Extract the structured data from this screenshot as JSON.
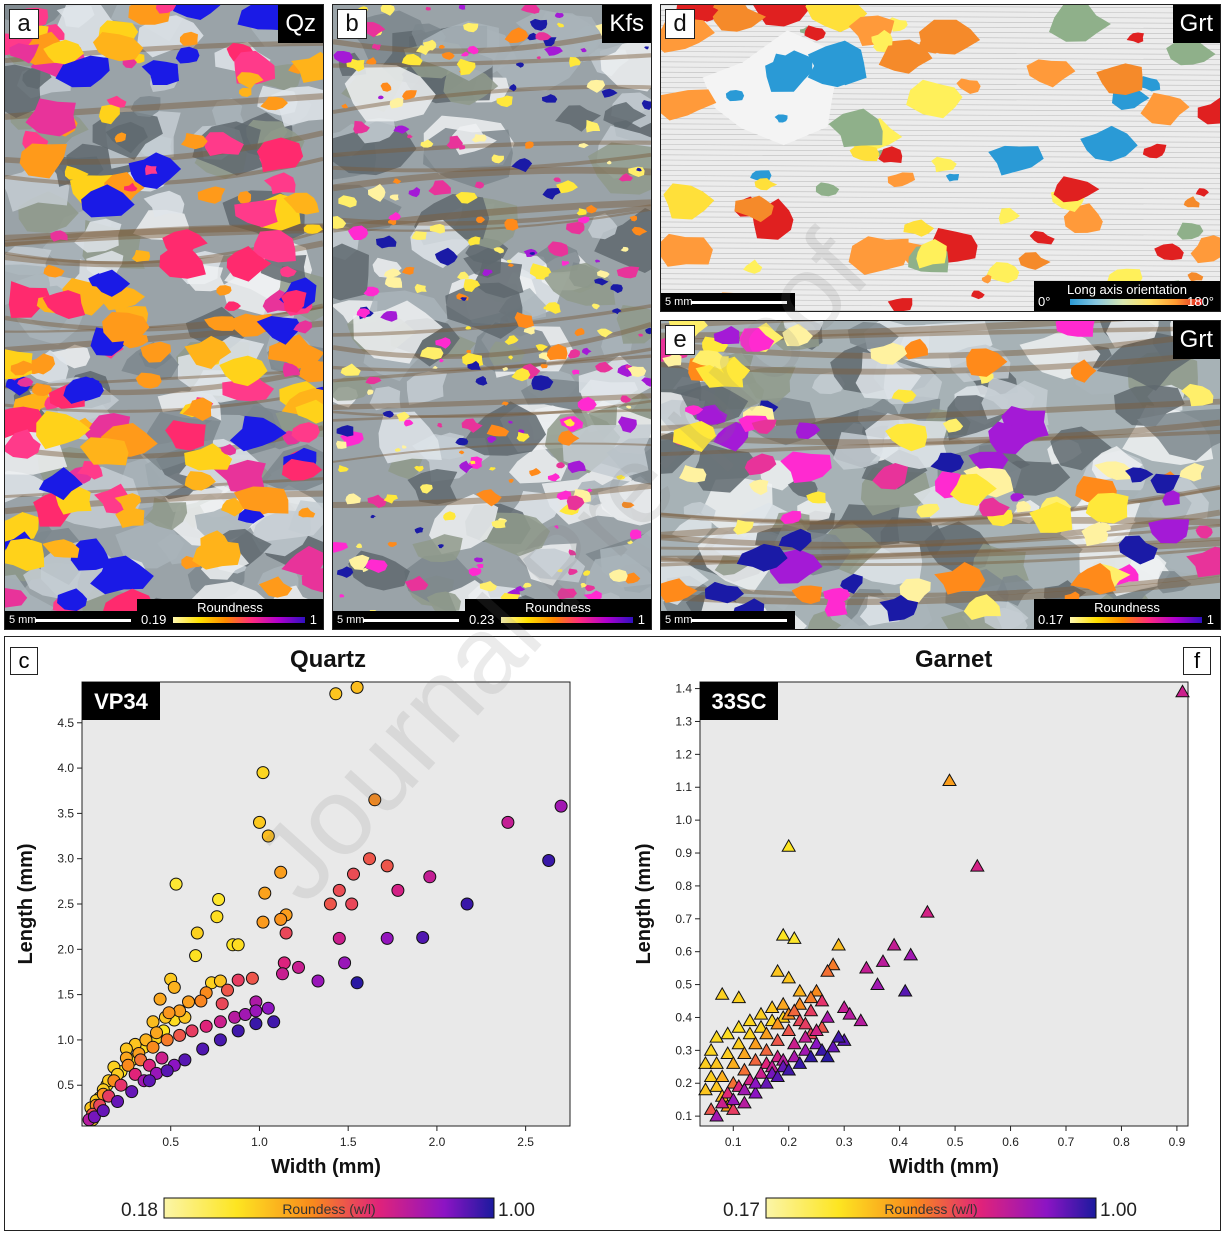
{
  "panels": {
    "a": {
      "letter": "a",
      "mineral": "Qz",
      "scale": "5 mm",
      "cbar_title": "Roundness",
      "cbar_min": "0.19",
      "cbar_max": "1"
    },
    "b": {
      "letter": "b",
      "mineral": "Kfs",
      "scale": "5 mm",
      "cbar_title": "Roundness",
      "cbar_min": "0.23",
      "cbar_max": "1"
    },
    "d": {
      "letter": "d",
      "mineral": "Grt",
      "scale": "5 mm",
      "cbar_title": "Long axis orientation",
      "cbar_min": "0°",
      "cbar_max": "180°"
    },
    "e": {
      "letter": "e",
      "mineral": "Grt",
      "scale": "5 mm",
      "cbar_title": "Roundness",
      "cbar_min": "0.17",
      "cbar_max": "1"
    }
  },
  "plots": {
    "c": {
      "letter": "c",
      "title": "Quartz",
      "sample": "VP34",
      "cbar_title": "Roundess (w/l)",
      "cbar_min": "0.18",
      "cbar_max": "1.00"
    },
    "f": {
      "letter": "f",
      "title": "Garnet",
      "sample": "33SC",
      "cbar_title": "Roundess (w/l)",
      "cbar_min": "0.17",
      "cbar_max": "1.00"
    }
  },
  "watermark": "Journal Pre-proof",
  "chart_data": [
    {
      "type": "scatter",
      "title": "Quartz",
      "xlabel": "Width (mm)",
      "ylabel": "Length (mm)",
      "xlim": [
        0.0,
        2.75
      ],
      "ylim": [
        0.05,
        4.95
      ],
      "xticks": [
        "0.5",
        "1.0",
        "1.5",
        "2.0",
        "2.5"
      ],
      "yticks": [
        "0.5",
        "1.0",
        "1.5",
        "2.0",
        "2.5",
        "3.0",
        "3.5",
        "4.0",
        "4.5"
      ],
      "marker": "circle",
      "color_variable": "roundness",
      "points": [
        [
          1.43,
          4.82,
          0.3
        ],
        [
          1.55,
          4.89,
          0.32
        ],
        [
          1.02,
          3.95,
          0.26
        ],
        [
          1.65,
          3.65,
          0.45
        ],
        [
          1.0,
          3.4,
          0.29
        ],
        [
          1.05,
          3.25,
          0.32
        ],
        [
          0.53,
          2.72,
          0.19
        ],
        [
          1.12,
          2.85,
          0.4
        ],
        [
          1.03,
          2.62,
          0.39
        ],
        [
          0.77,
          2.55,
          0.2
        ],
        [
          0.76,
          2.36,
          0.24
        ],
        [
          1.12,
          2.33,
          0.43
        ],
        [
          1.02,
          2.3,
          0.41
        ],
        [
          1.15,
          2.38,
          0.4
        ],
        [
          0.65,
          2.18,
          0.27
        ],
        [
          0.85,
          2.05,
          0.22
        ],
        [
          0.88,
          2.05,
          0.24
        ],
        [
          0.64,
          1.93,
          0.23
        ],
        [
          0.5,
          1.67,
          0.29
        ],
        [
          0.73,
          1.63,
          0.27
        ],
        [
          0.78,
          1.65,
          0.31
        ],
        [
          0.52,
          1.58,
          0.35
        ],
        [
          0.44,
          1.45,
          0.38
        ],
        [
          2.4,
          3.4,
          0.72
        ],
        [
          2.7,
          3.58,
          0.8
        ],
        [
          2.63,
          2.98,
          0.96
        ],
        [
          1.62,
          3.0,
          0.55
        ],
        [
          1.72,
          2.92,
          0.55
        ],
        [
          1.53,
          2.83,
          0.57
        ],
        [
          1.45,
          2.65,
          0.57
        ],
        [
          1.4,
          2.5,
          0.55
        ],
        [
          1.52,
          2.5,
          0.58
        ],
        [
          1.78,
          2.65,
          0.68
        ],
        [
          1.96,
          2.8,
          0.72
        ],
        [
          2.17,
          2.5,
          0.96
        ],
        [
          1.15,
          2.18,
          0.58
        ],
        [
          1.45,
          2.12,
          0.7
        ],
        [
          1.72,
          2.12,
          0.83
        ],
        [
          1.92,
          2.13,
          0.93
        ],
        [
          1.14,
          1.85,
          0.66
        ],
        [
          1.22,
          1.8,
          0.71
        ],
        [
          1.48,
          1.85,
          0.82
        ],
        [
          1.13,
          1.73,
          0.71
        ],
        [
          1.33,
          1.65,
          0.82
        ],
        [
          1.55,
          1.63,
          0.98
        ],
        [
          0.96,
          1.68,
          0.55
        ],
        [
          0.88,
          1.66,
          0.6
        ],
        [
          0.82,
          1.55,
          0.55
        ],
        [
          0.79,
          1.4,
          0.58
        ],
        [
          0.7,
          1.52,
          0.45
        ],
        [
          0.67,
          1.43,
          0.46
        ],
        [
          0.6,
          1.42,
          0.4
        ],
        [
          0.55,
          1.32,
          0.4
        ],
        [
          0.49,
          1.3,
          0.42
        ],
        [
          0.47,
          1.25,
          0.3
        ],
        [
          0.4,
          1.2,
          0.32
        ],
        [
          0.42,
          1.08,
          0.38
        ],
        [
          0.36,
          1.0,
          0.35
        ],
        [
          0.3,
          0.95,
          0.3
        ],
        [
          0.25,
          0.9,
          0.3
        ],
        [
          0.18,
          0.7,
          0.27
        ],
        [
          0.2,
          0.62,
          0.28
        ],
        [
          0.15,
          0.55,
          0.28
        ],
        [
          0.12,
          0.45,
          0.28
        ],
        [
          0.08,
          0.33,
          0.28
        ],
        [
          0.05,
          0.25,
          0.3
        ],
        [
          0.25,
          0.8,
          0.38
        ],
        [
          0.32,
          0.85,
          0.4
        ],
        [
          0.4,
          0.92,
          0.45
        ],
        [
          0.48,
          1.0,
          0.48
        ],
        [
          0.55,
          1.05,
          0.55
        ],
        [
          0.62,
          1.1,
          0.6
        ],
        [
          0.7,
          1.15,
          0.65
        ],
        [
          0.78,
          1.2,
          0.7
        ],
        [
          0.86,
          1.25,
          0.75
        ],
        [
          0.92,
          1.28,
          0.8
        ],
        [
          0.98,
          1.32,
          0.82
        ],
        [
          1.05,
          1.35,
          0.84
        ],
        [
          0.98,
          1.42,
          0.77
        ],
        [
          1.08,
          1.2,
          0.95
        ],
        [
          0.98,
          1.18,
          0.96
        ],
        [
          0.88,
          1.1,
          0.95
        ],
        [
          0.78,
          1.0,
          0.94
        ],
        [
          0.68,
          0.9,
          0.93
        ],
        [
          0.58,
          0.78,
          0.92
        ],
        [
          0.48,
          0.66,
          0.92
        ],
        [
          0.38,
          0.55,
          0.91
        ],
        [
          0.28,
          0.43,
          0.9
        ],
        [
          0.2,
          0.32,
          0.9
        ],
        [
          0.12,
          0.22,
          0.9
        ],
        [
          0.07,
          0.15,
          0.88
        ],
        [
          0.3,
          0.62,
          0.65
        ],
        [
          0.38,
          0.72,
          0.66
        ],
        [
          0.45,
          0.8,
          0.7
        ],
        [
          0.22,
          0.5,
          0.62
        ],
        [
          0.15,
          0.38,
          0.6
        ],
        [
          0.1,
          0.28,
          0.58
        ],
        [
          0.35,
          0.55,
          0.8
        ],
        [
          0.42,
          0.63,
          0.82
        ],
        [
          0.52,
          0.72,
          0.85
        ],
        [
          0.26,
          0.72,
          0.45
        ],
        [
          0.33,
          0.78,
          0.5
        ],
        [
          0.18,
          0.55,
          0.45
        ],
        [
          0.12,
          0.4,
          0.42
        ],
        [
          0.08,
          0.28,
          0.45
        ],
        [
          0.06,
          0.18,
          0.55
        ],
        [
          0.04,
          0.12,
          0.75
        ],
        [
          0.06,
          0.12,
          0.3
        ],
        [
          0.1,
          0.36,
          0.24
        ],
        [
          0.14,
          0.5,
          0.23
        ],
        [
          0.22,
          0.65,
          0.22
        ],
        [
          0.28,
          0.78,
          0.24
        ],
        [
          0.35,
          0.92,
          0.25
        ],
        [
          0.42,
          1.02,
          0.26
        ],
        [
          0.46,
          1.1,
          0.22
        ],
        [
          0.52,
          1.22,
          0.24
        ],
        [
          0.58,
          1.25,
          0.3
        ]
      ]
    },
    {
      "type": "scatter",
      "title": "Garnet",
      "xlabel": "Width (mm)",
      "ylabel": "Length (mm)",
      "xlim": [
        0.04,
        0.92
      ],
      "ylim": [
        0.07,
        1.42
      ],
      "xticks": [
        "0.1",
        "0.2",
        "0.3",
        "0.4",
        "0.5",
        "0.6",
        "0.7",
        "0.8",
        "0.9"
      ],
      "yticks": [
        "0.1",
        "0.2",
        "0.3",
        "0.4",
        "0.5",
        "0.6",
        "0.7",
        "0.8",
        "0.9",
        "1.0",
        "1.1",
        "1.2",
        "1.3",
        "1.4"
      ],
      "marker": "triangle",
      "color_variable": "roundness",
      "points": [
        [
          0.91,
          1.39,
          0.7
        ],
        [
          0.49,
          1.12,
          0.4
        ],
        [
          0.54,
          0.86,
          0.68
        ],
        [
          0.2,
          0.92,
          0.22
        ],
        [
          0.45,
          0.72,
          0.68
        ],
        [
          0.19,
          0.65,
          0.22
        ],
        [
          0.21,
          0.64,
          0.2
        ],
        [
          0.29,
          0.62,
          0.32
        ],
        [
          0.39,
          0.62,
          0.72
        ],
        [
          0.42,
          0.59,
          0.8
        ],
        [
          0.28,
          0.56,
          0.48
        ],
        [
          0.27,
          0.54,
          0.5
        ],
        [
          0.34,
          0.55,
          0.72
        ],
        [
          0.37,
          0.57,
          0.74
        ],
        [
          0.41,
          0.48,
          0.92
        ],
        [
          0.36,
          0.5,
          0.8
        ],
        [
          0.08,
          0.47,
          0.27
        ],
        [
          0.11,
          0.46,
          0.27
        ],
        [
          0.18,
          0.54,
          0.3
        ],
        [
          0.2,
          0.52,
          0.3
        ],
        [
          0.22,
          0.48,
          0.35
        ],
        [
          0.25,
          0.48,
          0.45
        ],
        [
          0.3,
          0.43,
          0.72
        ],
        [
          0.31,
          0.41,
          0.75
        ],
        [
          0.33,
          0.39,
          0.75
        ],
        [
          0.27,
          0.4,
          0.78
        ],
        [
          0.29,
          0.34,
          0.95
        ],
        [
          0.3,
          0.33,
          0.92
        ],
        [
          0.25,
          0.36,
          0.68
        ],
        [
          0.23,
          0.38,
          0.6
        ],
        [
          0.21,
          0.42,
          0.52
        ],
        [
          0.19,
          0.44,
          0.38
        ],
        [
          0.17,
          0.43,
          0.3
        ],
        [
          0.15,
          0.41,
          0.28
        ],
        [
          0.13,
          0.39,
          0.26
        ],
        [
          0.11,
          0.37,
          0.24
        ],
        [
          0.09,
          0.35,
          0.24
        ],
        [
          0.07,
          0.34,
          0.25
        ],
        [
          0.06,
          0.3,
          0.26
        ],
        [
          0.05,
          0.26,
          0.28
        ],
        [
          0.06,
          0.22,
          0.28
        ],
        [
          0.07,
          0.19,
          0.3
        ],
        [
          0.08,
          0.16,
          0.32
        ],
        [
          0.09,
          0.13,
          0.4
        ],
        [
          0.1,
          0.12,
          0.6
        ],
        [
          0.12,
          0.14,
          0.75
        ],
        [
          0.14,
          0.17,
          0.85
        ],
        [
          0.16,
          0.2,
          0.9
        ],
        [
          0.18,
          0.22,
          0.92
        ],
        [
          0.2,
          0.24,
          0.95
        ],
        [
          0.22,
          0.26,
          0.96
        ],
        [
          0.24,
          0.28,
          0.97
        ],
        [
          0.26,
          0.3,
          0.96
        ],
        [
          0.25,
          0.32,
          0.85
        ],
        [
          0.23,
          0.3,
          0.8
        ],
        [
          0.21,
          0.28,
          0.78
        ],
        [
          0.19,
          0.27,
          0.75
        ],
        [
          0.17,
          0.25,
          0.72
        ],
        [
          0.15,
          0.23,
          0.7
        ],
        [
          0.13,
          0.21,
          0.68
        ],
        [
          0.11,
          0.19,
          0.66
        ],
        [
          0.09,
          0.17,
          0.64
        ],
        [
          0.08,
          0.14,
          0.7
        ],
        [
          0.1,
          0.2,
          0.5
        ],
        [
          0.12,
          0.24,
          0.5
        ],
        [
          0.14,
          0.27,
          0.52
        ],
        [
          0.16,
          0.3,
          0.52
        ],
        [
          0.18,
          0.33,
          0.55
        ],
        [
          0.2,
          0.36,
          0.55
        ],
        [
          0.22,
          0.39,
          0.58
        ],
        [
          0.24,
          0.42,
          0.6
        ],
        [
          0.26,
          0.45,
          0.62
        ],
        [
          0.24,
          0.46,
          0.48
        ],
        [
          0.22,
          0.44,
          0.45
        ],
        [
          0.2,
          0.41,
          0.44
        ],
        [
          0.18,
          0.38,
          0.42
        ],
        [
          0.16,
          0.35,
          0.4
        ],
        [
          0.14,
          0.32,
          0.4
        ],
        [
          0.12,
          0.29,
          0.38
        ],
        [
          0.1,
          0.26,
          0.36
        ],
        [
          0.08,
          0.22,
          0.36
        ],
        [
          0.07,
          0.26,
          0.3
        ],
        [
          0.09,
          0.29,
          0.28
        ],
        [
          0.11,
          0.32,
          0.28
        ],
        [
          0.13,
          0.35,
          0.27
        ],
        [
          0.15,
          0.37,
          0.26
        ],
        [
          0.17,
          0.39,
          0.26
        ],
        [
          0.19,
          0.4,
          0.27
        ],
        [
          0.16,
          0.26,
          0.65
        ],
        [
          0.18,
          0.28,
          0.68
        ],
        [
          0.21,
          0.32,
          0.7
        ],
        [
          0.23,
          0.34,
          0.72
        ],
        [
          0.12,
          0.18,
          0.8
        ],
        [
          0.1,
          0.15,
          0.82
        ],
        [
          0.14,
          0.2,
          0.85
        ],
        [
          0.17,
          0.23,
          0.88
        ],
        [
          0.19,
          0.25,
          0.9
        ],
        [
          0.06,
          0.12,
          0.55
        ],
        [
          0.07,
          0.1,
          0.8
        ],
        [
          0.05,
          0.18,
          0.3
        ],
        [
          0.27,
          0.28,
          0.98
        ],
        [
          0.28,
          0.31,
          0.9
        ],
        [
          0.24,
          0.35,
          0.58
        ],
        [
          0.26,
          0.37,
          0.55
        ]
      ]
    }
  ]
}
